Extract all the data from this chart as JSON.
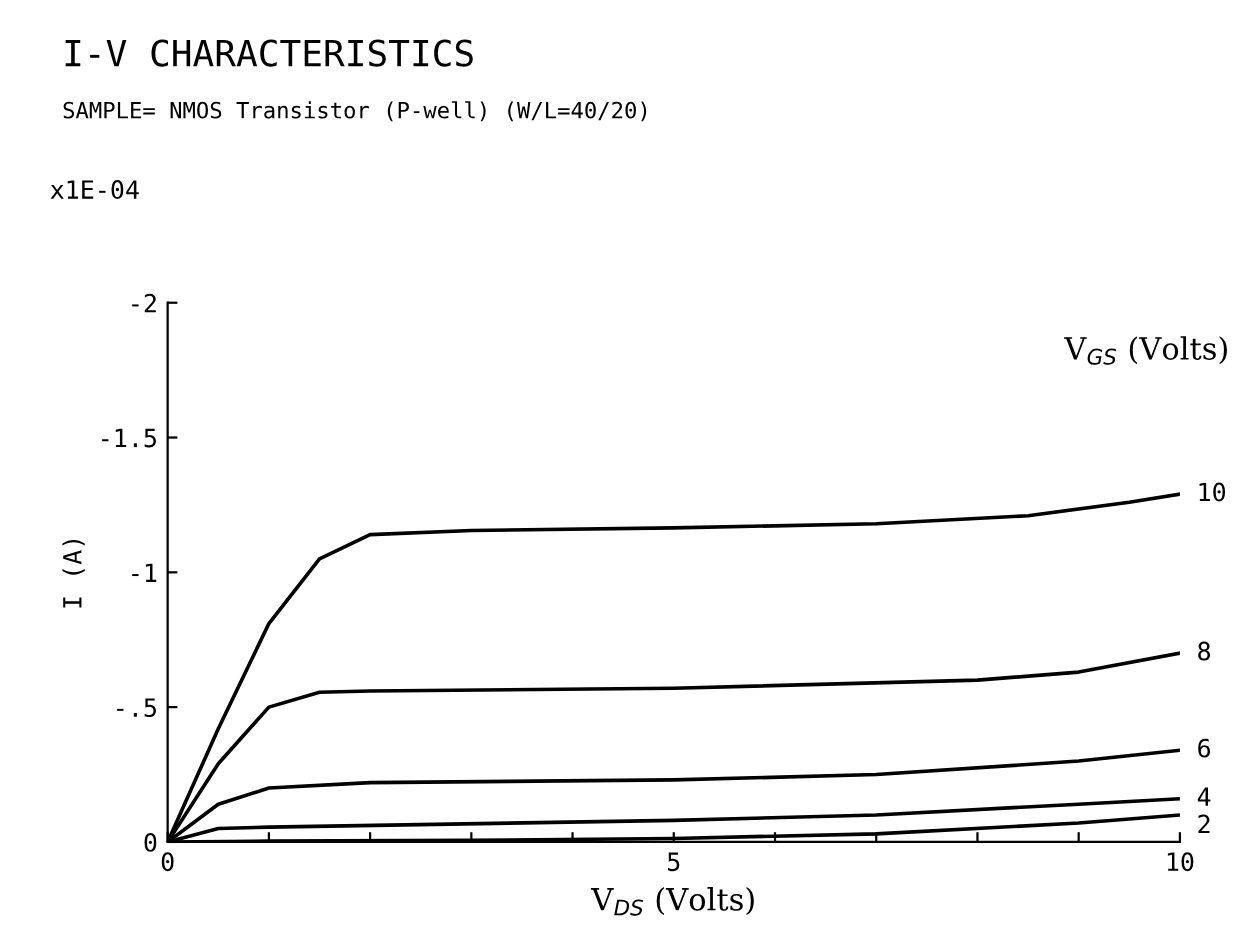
{
  "chart_data": {
    "type": "line",
    "title": "I-V CHARACTERISTICS",
    "subtitle": "SAMPLE= NMOS Transistor (P-well) (W/L=40/20)",
    "xlabel": "V$_{DS}$ (Volts)",
    "ylabel": "I (A)",
    "legend_title": "V$_{GS}$ (Volts)",
    "annotations": [
      "x1E-04"
    ],
    "xlim": [
      0,
      10
    ],
    "ylim": [
      0,
      -2
    ],
    "xticks": [
      0,
      {
        "value": 1,
        "label": null
      },
      {
        "value": 2,
        "label": null
      },
      {
        "value": 3,
        "label": null
      },
      {
        "value": 4,
        "label": null
      },
      5,
      {
        "value": 6,
        "label": null
      },
      {
        "value": 7,
        "label": null
      },
      {
        "value": 8,
        "label": null
      },
      {
        "value": 9,
        "label": null
      },
      10
    ],
    "yticks": [
      0,
      {
        "value": -0.5,
        "label": "-.5"
      },
      -1,
      -1.5,
      -2
    ],
    "grid": false,
    "legend": false,
    "marker": "none",
    "line_style": "solid",
    "series": [
      {
        "name": "10",
        "color": "#000000",
        "x": [
          0,
          0.5,
          1,
          1.5,
          2,
          3,
          5,
          7,
          8.5,
          9.5,
          10
        ],
        "values": [
          0,
          -0.42,
          -0.81,
          -1.05,
          -1.14,
          -1.155,
          -1.165,
          -1.18,
          -1.21,
          -1.26,
          -1.29
        ]
      },
      {
        "name": "8",
        "color": "#000000",
        "x": [
          0,
          0.5,
          1,
          1.5,
          2,
          5,
          8,
          9,
          10
        ],
        "values": [
          0,
          -0.29,
          -0.5,
          -0.555,
          -0.56,
          -0.57,
          -0.6,
          -0.63,
          -0.7
        ]
      },
      {
        "name": "6",
        "color": "#000000",
        "x": [
          0,
          0.5,
          1,
          2,
          5,
          7,
          9,
          10
        ],
        "values": [
          0,
          -0.14,
          -0.2,
          -0.22,
          -0.23,
          -0.25,
          -0.3,
          -0.34
        ]
      },
      {
        "name": "4",
        "color": "#000000",
        "x": [
          0,
          0.5,
          1,
          5,
          7,
          9,
          10
        ],
        "values": [
          0,
          -0.05,
          -0.055,
          -0.08,
          -0.1,
          -0.14,
          -0.16
        ]
      },
      {
        "name": "2",
        "color": "#000000",
        "x": [
          0,
          1,
          3,
          5,
          7,
          9,
          10
        ],
        "values": [
          0,
          -0.003,
          -0.006,
          -0.013,
          -0.03,
          -0.07,
          -0.1
        ]
      }
    ]
  }
}
